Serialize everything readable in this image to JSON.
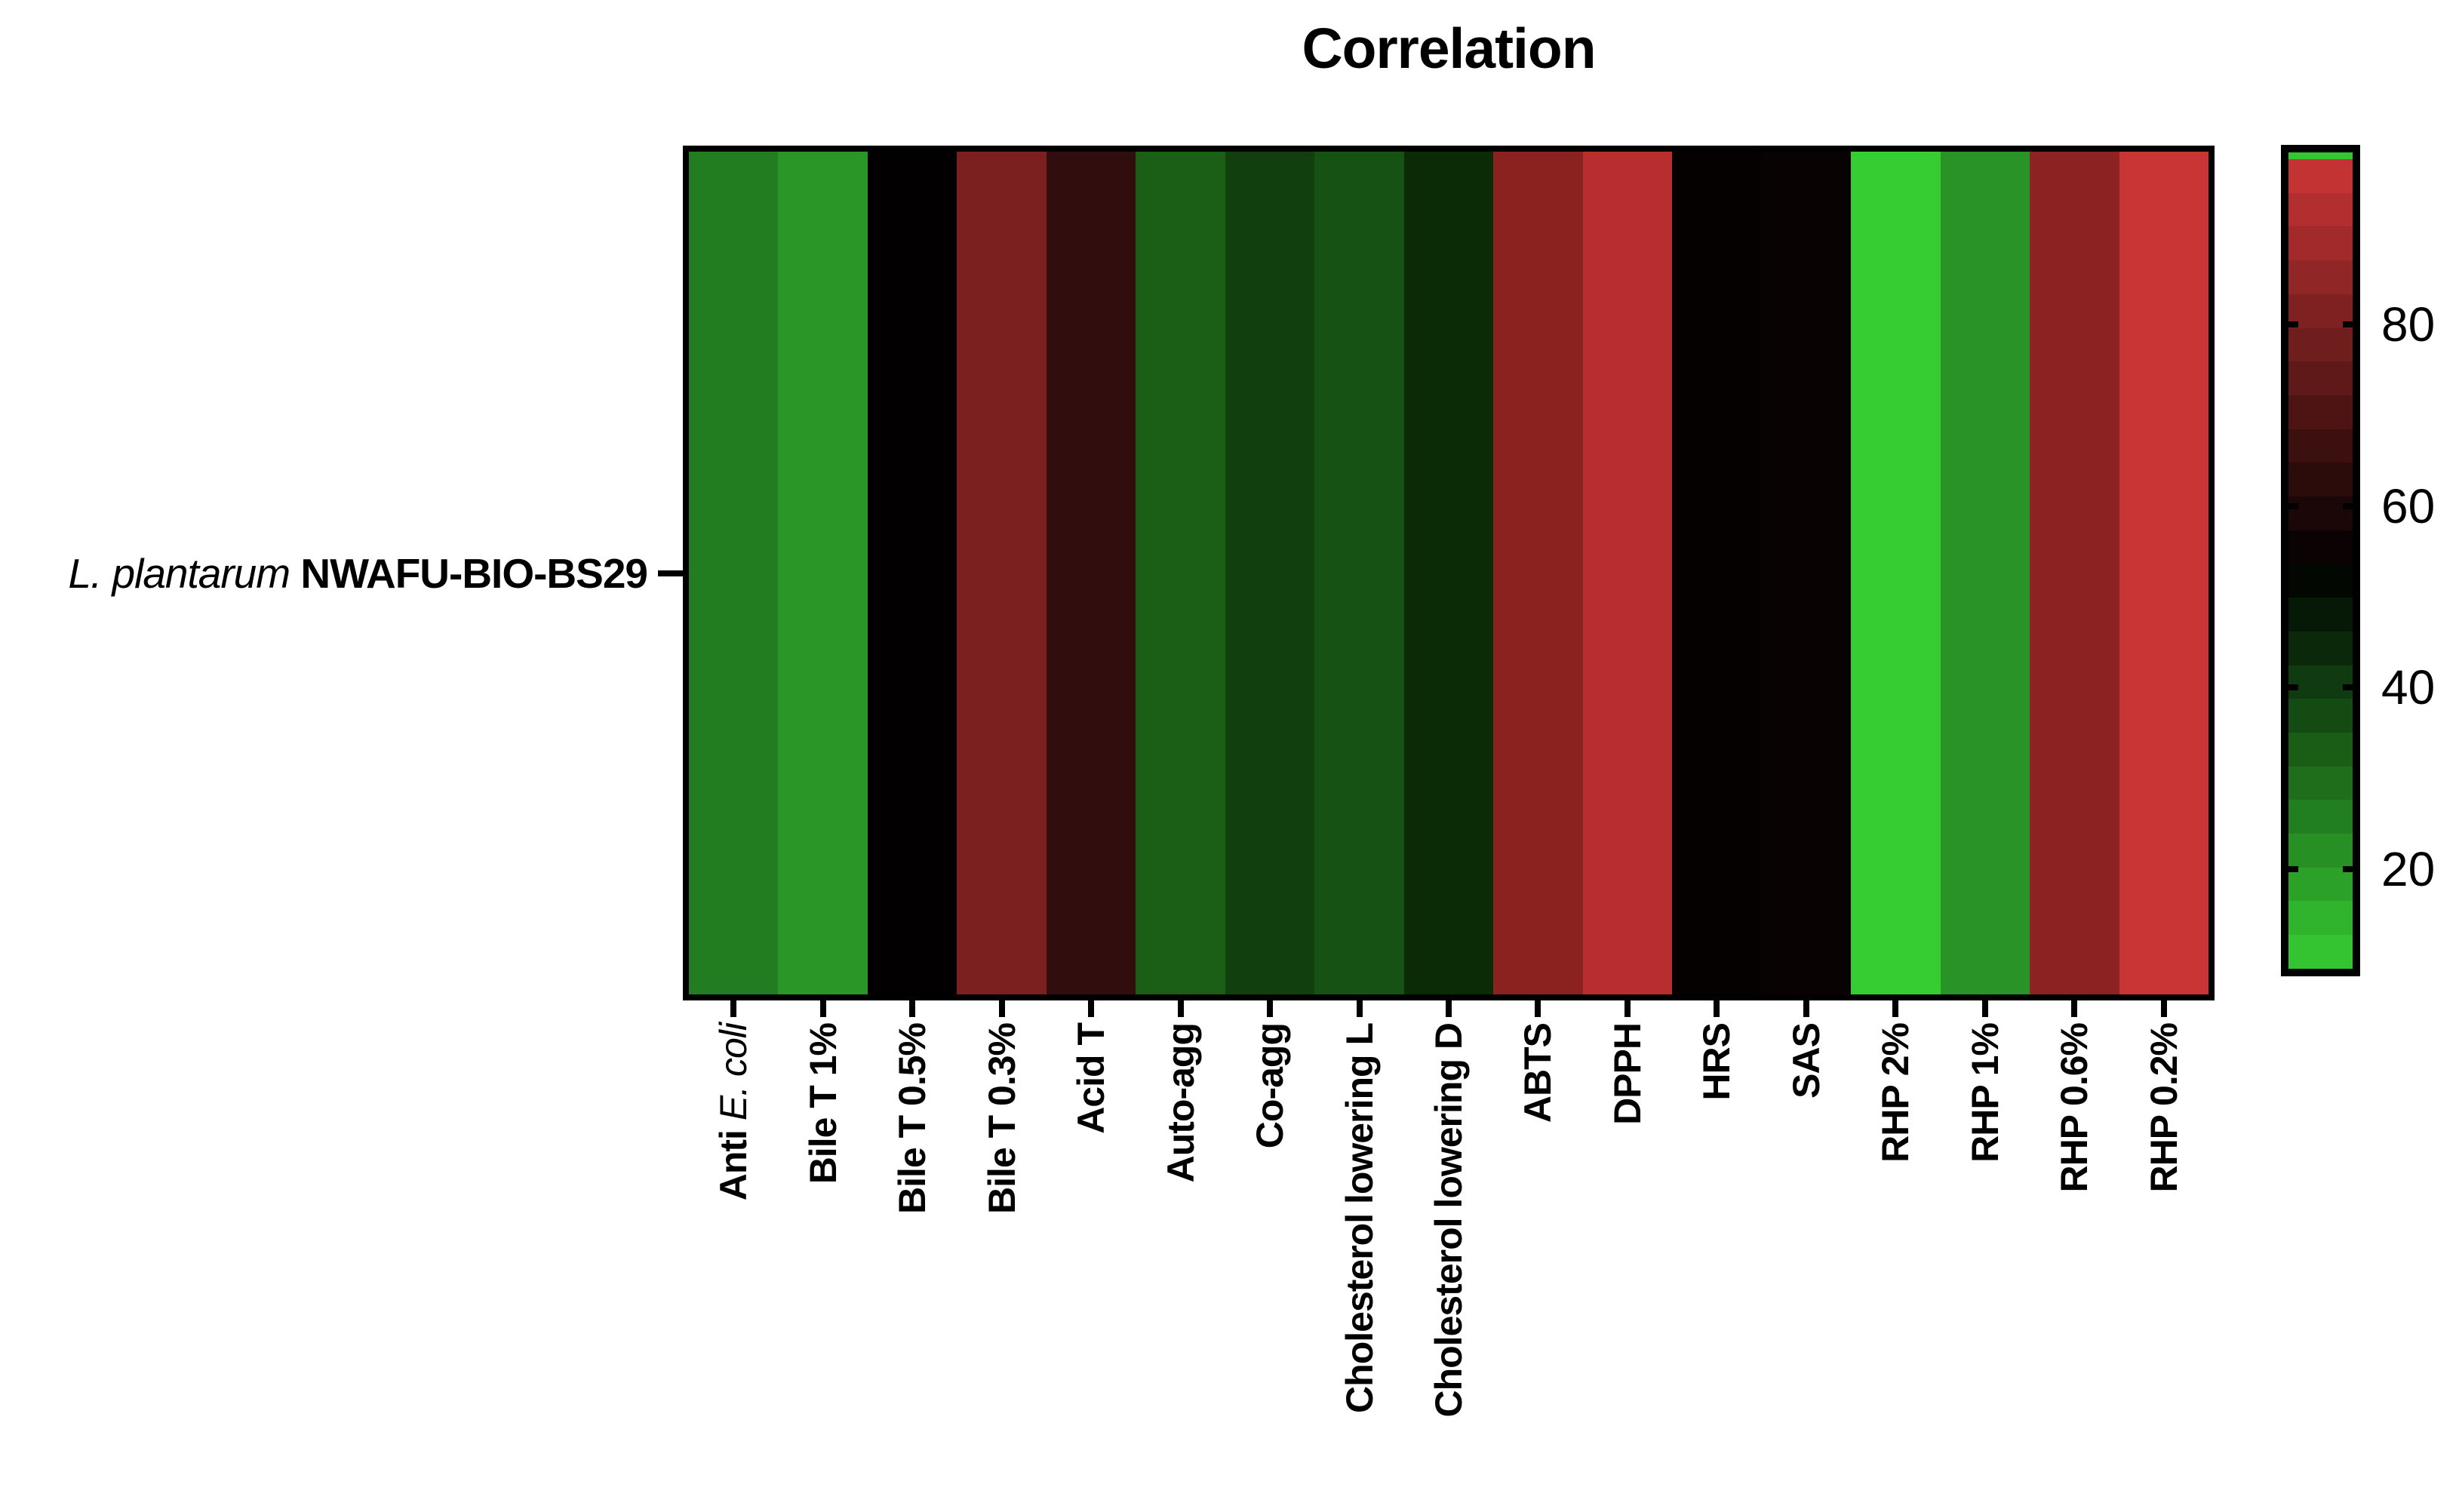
{
  "title": "Correlation",
  "row": {
    "italic": "L. plantarum ",
    "bold": "NWAFU-BIO-BS29"
  },
  "columns": [
    {
      "label": "Anti E. coli",
      "parts": [
        {
          "t": "Anti ",
          "italic": false
        },
        {
          "t": "E. coli",
          "italic": true
        }
      ],
      "color": "#227d21",
      "value": 26
    },
    {
      "label": "Bile T 1%",
      "parts": [
        {
          "t": "Bile T 1%",
          "italic": false
        }
      ],
      "color": "#2b9628",
      "value": 21
    },
    {
      "label": "Bile T 0.5%",
      "parts": [
        {
          "t": "Bile T 0.5%",
          "italic": false
        }
      ],
      "color": "#020000",
      "value": 54
    },
    {
      "label": "Bile T 0.3%",
      "parts": [
        {
          "t": "Bile T 0.3%",
          "italic": false
        }
      ],
      "color": "#7c201f",
      "value": 81
    },
    {
      "label": "Acid T",
      "parts": [
        {
          "t": "Acid T",
          "italic": false
        }
      ],
      "color": "#310d0e",
      "value": 65
    },
    {
      "label": "Auto-agg",
      "parts": [
        {
          "t": "Auto-agg",
          "italic": false
        }
      ],
      "color": "#1b5e15",
      "value": 33
    },
    {
      "label": "Co-agg",
      "parts": [
        {
          "t": "Co-agg",
          "italic": false
        }
      ],
      "color": "#123f0e",
      "value": 40
    },
    {
      "label": "Cholesterol lowering L",
      "parts": [
        {
          "t": "Cholesterol lowering L",
          "italic": false
        }
      ],
      "color": "#165213",
      "value": 36
    },
    {
      "label": "Cholesterol lowering D",
      "parts": [
        {
          "t": "Cholesterol lowering D",
          "italic": false
        }
      ],
      "color": "#0b2b07",
      "value": 44
    },
    {
      "label": "ABTS",
      "parts": [
        {
          "t": "ABTS",
          "italic": false
        }
      ],
      "color": "#8c2220",
      "value": 85
    },
    {
      "label": "DPPH",
      "parts": [
        {
          "t": "DPPH",
          "italic": false
        }
      ],
      "color": "#b82d2d",
      "value": 95
    },
    {
      "label": "HRS",
      "parts": [
        {
          "t": "HRS",
          "italic": false
        }
      ],
      "color": "#060101",
      "value": 54
    },
    {
      "label": "SAS",
      "parts": [
        {
          "t": "SAS",
          "italic": false
        }
      ],
      "color": "#090202",
      "value": 54
    },
    {
      "label": "RHP 2%",
      "parts": [
        {
          "t": "RHP 2%",
          "italic": false
        }
      ],
      "color": "#36cd33",
      "value": 9
    },
    {
      "label": "RHP 1%",
      "parts": [
        {
          "t": "RHP 1%",
          "italic": false
        }
      ],
      "color": "#2a9327",
      "value": 22
    },
    {
      "label": "RHP 0.6%",
      "parts": [
        {
          "t": "RHP 0.6%",
          "italic": false
        }
      ],
      "color": "#8c2322",
      "value": 85
    },
    {
      "label": "RHP 0.2%",
      "parts": [
        {
          "t": "RHP 0.2%",
          "italic": false
        }
      ],
      "color": "#c93434",
      "value": 98
    }
  ],
  "colorbar": {
    "top_strip_color": "#33c832",
    "top_strip_height": 9,
    "bands": [
      "#c43333",
      "#b32f2f",
      "#a22a2a",
      "#912626",
      "#802121",
      "#701d1d",
      "#5f1919",
      "#4e1414",
      "#3d1010",
      "#2c0b0b",
      "#1b0707",
      "#0b0303",
      "#020702",
      "#061806",
      "#0b290a",
      "#103a0f",
      "#144b13",
      "#195d17",
      "#1e6e1c",
      "#227f20",
      "#279024",
      "#2ba128",
      "#30b32d",
      "#35c431"
    ],
    "tick_labels": [
      "80",
      "60",
      "40",
      "20"
    ],
    "tick_values": [
      80,
      60,
      40,
      20
    ],
    "min": 9,
    "max": 99
  },
  "chart_data": {
    "type": "heatmap",
    "title": "Correlation",
    "rows": [
      "L. plantarum NWAFU-BIO-BS29"
    ],
    "categories": [
      "Anti E. coli",
      "Bile T 1%",
      "Bile T 0.5%",
      "Bile T 0.3%",
      "Acid T",
      "Auto-agg",
      "Co-agg",
      "Cholesterol lowering L",
      "Cholesterol lowering D",
      "ABTS",
      "DPPH",
      "HRS",
      "SAS",
      "RHP 2%",
      "RHP 1%",
      "RHP 0.6%",
      "RHP 0.2%"
    ],
    "values": [
      [
        26,
        21,
        54,
        81,
        65,
        33,
        40,
        36,
        44,
        85,
        95,
        54,
        54,
        9,
        22,
        85,
        98
      ]
    ],
    "colorscale": {
      "low_color": "#36cd33",
      "mid_color": "#000000",
      "high_color": "#c93434",
      "min": 9,
      "mid": 54,
      "max": 99
    },
    "legend_ticks": [
      20,
      40,
      60,
      80
    ],
    "legend_position": "right",
    "grid": false
  }
}
